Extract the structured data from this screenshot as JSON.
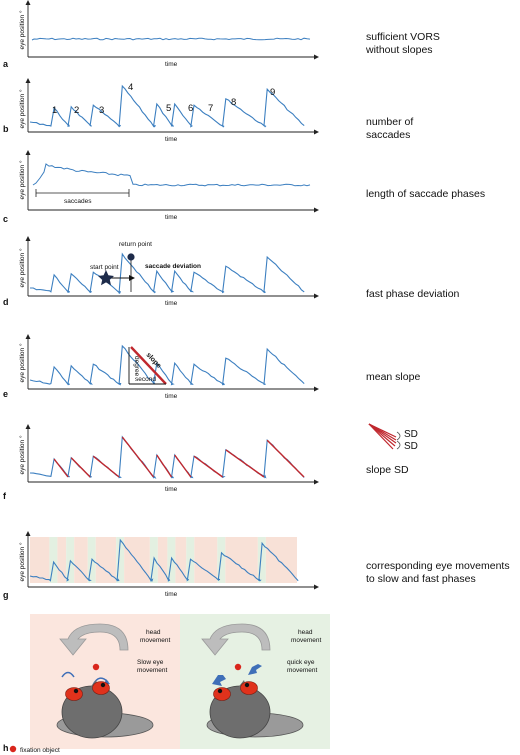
{
  "colors": {
    "trace": "#3c7fc0",
    "slope_red": "#c0282e",
    "slow_band": "#f8e1d7",
    "fast_band": "#e3f0e1",
    "panel_h_left": "#fbe6de",
    "panel_h_right": "#e6f1e3",
    "head_gray": "#6e6e6e",
    "eye_red": "#e0321c",
    "arrow_gray": "#bdbdbd",
    "arrow_blue": "#3f6fb8"
  },
  "axes": {
    "ylabel": "eye position °",
    "xlabel": "time"
  },
  "panels": {
    "a": {
      "label": "a",
      "desc": [
        "sufficient VORS",
        "without slopes"
      ]
    },
    "b": {
      "label": "b",
      "desc": [
        "number of",
        "saccades"
      ],
      "saccade_numbers": [
        "1",
        "2",
        "3",
        "4",
        "5",
        "6",
        "7",
        "8",
        "9"
      ]
    },
    "c": {
      "label": "c",
      "desc": [
        "length of saccade phases"
      ],
      "bracket_label": "saccades"
    },
    "d": {
      "label": "d",
      "desc": [
        "fast phase deviation"
      ],
      "start_point": "start point",
      "return_point": "return point",
      "saccade_deviation": "saccade deviation"
    },
    "e": {
      "label": "e",
      "desc": [
        "mean slope"
      ],
      "slope": "slope",
      "degree": "degree",
      "second": "second"
    },
    "f": {
      "label": "f",
      "desc": [
        "slope SD"
      ],
      "sd1": "SD",
      "sd2": "SD"
    },
    "g": {
      "label": "g",
      "desc": [
        "corresponding eye movements",
        "to slow and fast phases"
      ]
    },
    "h": {
      "label": "h",
      "left_head_movement": [
        "head",
        "movement"
      ],
      "left_eye_movement": [
        "Slow eye",
        "movement"
      ],
      "right_head_movement": [
        "head",
        "movement"
      ],
      "right_eye_movement": [
        "quick eye",
        "movement"
      ],
      "fixation_legend": "fixation object"
    }
  }
}
